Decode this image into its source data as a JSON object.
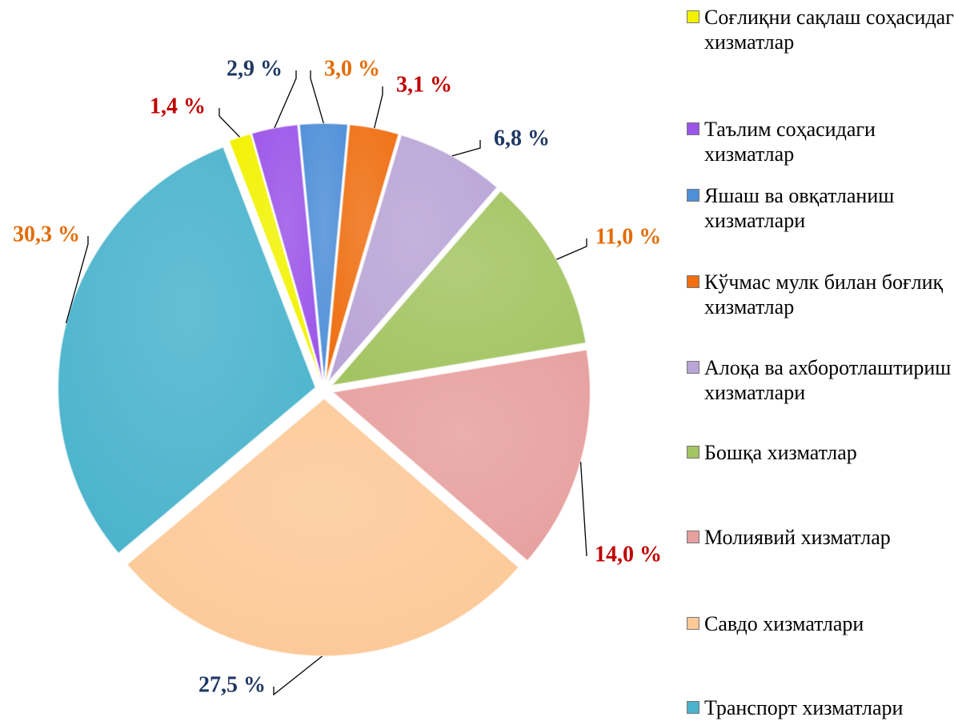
{
  "chart_data": {
    "type": "pie",
    "categories": [
      "Соғлиқни сақлаш соҳасидаги хизматлар",
      "Таълим соҳасидаги хизматлар",
      "Яшаш ва овқатланиш хизматлари",
      "Кўчмас мулк билан боғлиқ хизматлар",
      "Алоқа ва ахборотлаштириш хизматлари",
      "Бошқа хизматлар",
      "Молиявий хизматлар",
      "Савдо хизматлари",
      "Транспорт хизматлари"
    ],
    "values": [
      1.4,
      2.9,
      3.0,
      3.1,
      6.8,
      11.0,
      14.0,
      27.5,
      30.3
    ],
    "value_labels": [
      "1,4 %",
      "2,9 %",
      "3,0 %",
      "3,1 %",
      "6,8 %",
      "11,0 %",
      "14,0 %",
      "27,5 %",
      "30,3 %"
    ],
    "colors": [
      "#f2f200",
      "#9b55e8",
      "#4f8fd8",
      "#ef6f12",
      "#b9a5d6",
      "#a3c462",
      "#e6a09e",
      "#fcc997",
      "#4ab3cc"
    ],
    "label_colors": [
      "#c00000",
      "#1f3864",
      "#e36c09",
      "#c00000",
      "#1f3864",
      "#e36c09",
      "#c00000",
      "#1f3864",
      "#e36c09"
    ],
    "legend": "right"
  }
}
